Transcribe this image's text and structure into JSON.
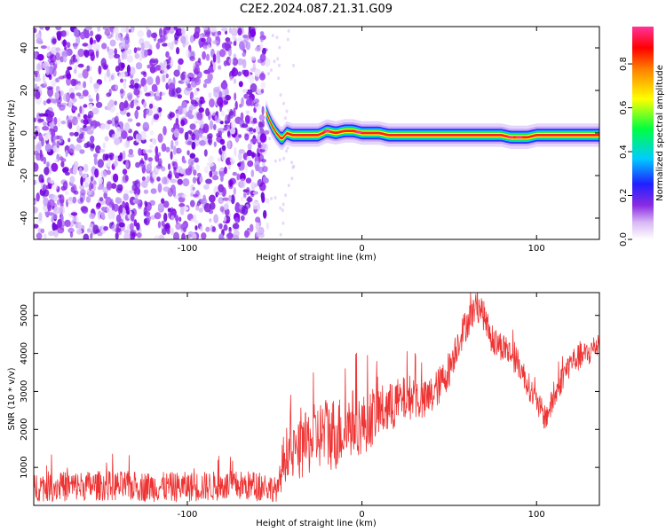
{
  "figure": {
    "title": "C2E2.2024.087.21.31.G09"
  },
  "chart_data": [
    {
      "type": "heatmap",
      "xlabel": "Height of straight line (km)",
      "ylabel": "Frequency (Hz)",
      "xlim": [
        -188,
        136
      ],
      "ylim": [
        -50,
        50
      ],
      "xticks": [
        -100,
        0,
        100
      ],
      "yticks": [
        -40,
        -20,
        0,
        20,
        40
      ],
      "grid": false,
      "noise_region_x": [
        -188,
        -54
      ],
      "ridge": {
        "x": [
          -55,
          -52,
          -49,
          -46,
          -43,
          -40,
          -35,
          -30,
          -25,
          -20,
          -15,
          -10,
          -5,
          0,
          5,
          10,
          15,
          20,
          30,
          40,
          50,
          60,
          70,
          80,
          85,
          90,
          95,
          100,
          110,
          120,
          136
        ],
        "freq": [
          10,
          4,
          0,
          -3,
          0,
          -1,
          -1,
          -1,
          -1,
          1,
          0,
          1,
          1,
          0,
          0,
          0,
          -1,
          -1,
          -1,
          -1,
          -1,
          -1,
          -1,
          -1,
          -2,
          -2,
          -2,
          -1,
          -1,
          -1,
          -1
        ]
      },
      "colorbar": {
        "label": "Normalized spectral amplitude",
        "ticks": [
          0.0,
          0.2,
          0.4,
          0.6,
          0.8
        ],
        "tick_labels": [
          "0.0",
          "0.2",
          "0.4",
          "0.6",
          "0.8"
        ],
        "range": [
          0,
          0.97
        ],
        "colormap": "white-purple-blue-cyan-green-yellow-red-pink"
      }
    },
    {
      "type": "line",
      "xlabel": "Height of straight line (km)",
      "ylabel": "SNR (10 * v/v)",
      "xlim": [
        -188,
        136
      ],
      "ylim": [
        0,
        5600
      ],
      "xticks": [
        -100,
        0,
        100
      ],
      "yticks": [
        1000,
        2000,
        3000,
        4000,
        5000
      ],
      "grid": false,
      "series": [
        {
          "color": "#ee3333",
          "x": [
            -188,
            -170,
            -150,
            -130,
            -110,
            -90,
            -70,
            -55,
            -48,
            -45,
            -42,
            -40,
            -35,
            -30,
            -25,
            -20,
            -15,
            -10,
            -5,
            0,
            5,
            10,
            15,
            20,
            25,
            30,
            35,
            40,
            45,
            50,
            55,
            60,
            65,
            68,
            72,
            75,
            80,
            85,
            90,
            95,
            100,
            105,
            110,
            115,
            120,
            125,
            130,
            136
          ],
          "y": [
            500,
            500,
            520,
            500,
            480,
            500,
            520,
            500,
            400,
            1200,
            1500,
            1300,
            1450,
            1700,
            1850,
            1900,
            1900,
            2000,
            2200,
            2100,
            2300,
            2500,
            2500,
            2700,
            2800,
            2900,
            2700,
            2900,
            3200,
            3600,
            4300,
            4800,
            5200,
            5200,
            4700,
            4300,
            4200,
            4000,
            3700,
            3200,
            2700,
            2300,
            2800,
            3400,
            3800,
            3900,
            4000,
            4300
          ],
          "noise_amplitude": [
            400,
            400,
            400,
            400,
            400,
            400,
            400,
            400,
            300,
            700,
            700,
            700,
            800,
            900,
            900,
            1000,
            1000,
            900,
            900,
            800,
            800,
            700,
            700,
            650,
            600,
            600,
            550,
            550,
            500,
            500,
            450,
            450,
            400,
            400,
            400,
            400,
            400,
            380,
            380,
            360,
            360,
            360,
            360,
            360,
            360,
            360,
            360,
            360
          ]
        }
      ]
    }
  ]
}
